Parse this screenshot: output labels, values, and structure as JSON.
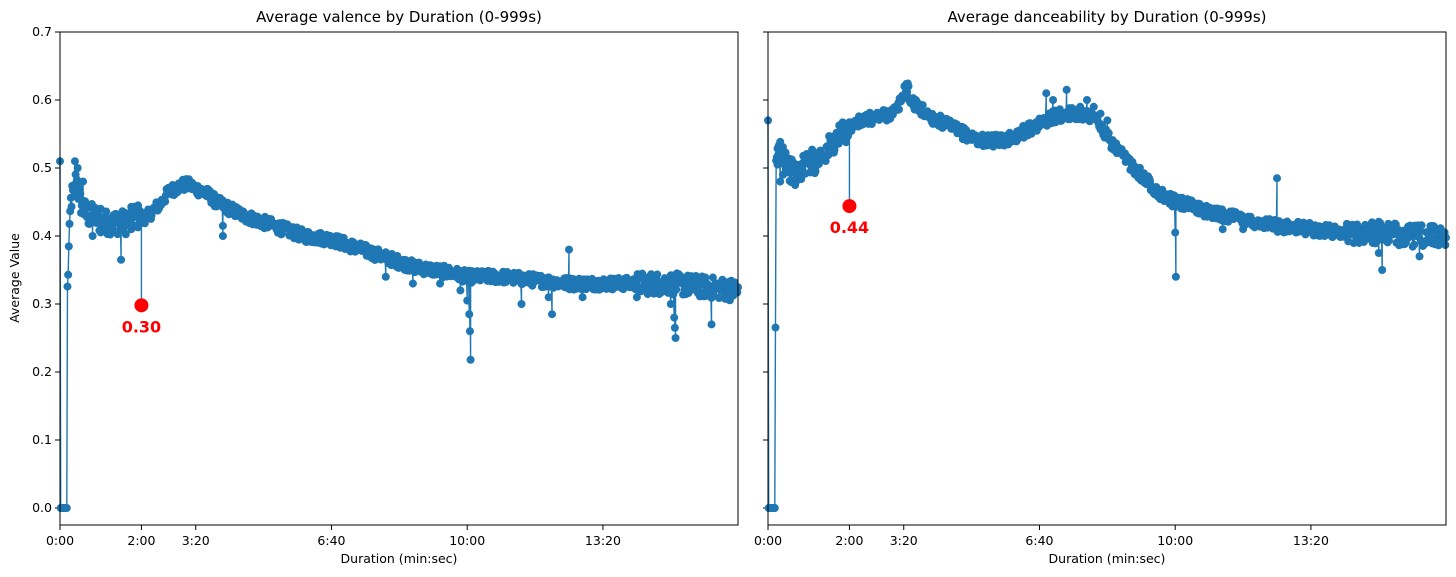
{
  "chart_data": [
    {
      "type": "line",
      "title": "Average valence by Duration (0-999s)",
      "xlabel": "Duration (min:sec)",
      "ylabel": "Average Value",
      "xlim": [
        0,
        999
      ],
      "ylim": [
        -0.025,
        0.7
      ],
      "xticks": [
        0,
        120,
        200,
        400,
        600,
        800
      ],
      "xtick_labels": [
        "0:00",
        "2:00",
        "3:20",
        "6:40",
        "10:00",
        "13:20"
      ],
      "yticks": [
        0.0,
        0.1,
        0.2,
        0.3,
        0.4,
        0.5,
        0.6,
        0.7
      ],
      "ytick_labels": [
        "0.0",
        "0.1",
        "0.2",
        "0.3",
        "0.4",
        "0.5",
        "0.6",
        "0.7"
      ],
      "series_color": "#1f77b4",
      "curve": [
        [
          0,
          0.51
        ],
        [
          1,
          0.0
        ],
        [
          2,
          0.0
        ],
        [
          3,
          0.0
        ],
        [
          4,
          0.0
        ],
        [
          5,
          0.0
        ],
        [
          6,
          0.0
        ],
        [
          7,
          0.0
        ],
        [
          8,
          0.0
        ],
        [
          9,
          0.0
        ],
        [
          10,
          0.0
        ],
        [
          11,
          0.32
        ],
        [
          12,
          0.35
        ],
        [
          13,
          0.38
        ],
        [
          14,
          0.4
        ],
        [
          15,
          0.43
        ],
        [
          16,
          0.45
        ],
        [
          18,
          0.46
        ],
        [
          20,
          0.46
        ],
        [
          22,
          0.47
        ],
        [
          24,
          0.49
        ],
        [
          26,
          0.47
        ],
        [
          28,
          0.46
        ],
        [
          30,
          0.45
        ],
        [
          35,
          0.44
        ],
        [
          40,
          0.43
        ],
        [
          50,
          0.43
        ],
        [
          60,
          0.42
        ],
        [
          70,
          0.42
        ],
        [
          80,
          0.42
        ],
        [
          90,
          0.42
        ],
        [
          100,
          0.42
        ],
        [
          110,
          0.43
        ],
        [
          120,
          0.425
        ],
        [
          130,
          0.43
        ],
        [
          140,
          0.44
        ],
        [
          150,
          0.45
        ],
        [
          160,
          0.465
        ],
        [
          170,
          0.47
        ],
        [
          180,
          0.475
        ],
        [
          190,
          0.475
        ],
        [
          200,
          0.47
        ],
        [
          210,
          0.465
        ],
        [
          220,
          0.46
        ],
        [
          230,
          0.45
        ],
        [
          240,
          0.445
        ],
        [
          250,
          0.44
        ],
        [
          270,
          0.43
        ],
        [
          300,
          0.42
        ],
        [
          330,
          0.41
        ],
        [
          360,
          0.4
        ],
        [
          400,
          0.395
        ],
        [
          430,
          0.385
        ],
        [
          460,
          0.375
        ],
        [
          490,
          0.365
        ],
        [
          520,
          0.355
        ],
        [
          550,
          0.35
        ],
        [
          580,
          0.345
        ],
        [
          600,
          0.34
        ],
        [
          650,
          0.34
        ],
        [
          700,
          0.335
        ],
        [
          750,
          0.33
        ],
        [
          800,
          0.33
        ],
        [
          850,
          0.33
        ],
        [
          900,
          0.33
        ],
        [
          950,
          0.325
        ],
        [
          999,
          0.32
        ]
      ],
      "spikes": [
        [
          22,
          0.51
        ],
        [
          26,
          0.5
        ],
        [
          34,
          0.48
        ],
        [
          48,
          0.4
        ],
        [
          60,
          0.44
        ],
        [
          68,
          0.41
        ],
        [
          80,
          0.43
        ],
        [
          90,
          0.365
        ],
        [
          105,
          0.41
        ],
        [
          115,
          0.445
        ],
        [
          240,
          0.4
        ],
        [
          240,
          0.415
        ],
        [
          410,
          0.39
        ],
        [
          480,
          0.34
        ],
        [
          520,
          0.33
        ],
        [
          560,
          0.33
        ],
        [
          590,
          0.32
        ],
        [
          600,
          0.305
        ],
        [
          603,
          0.285
        ],
        [
          604,
          0.26
        ],
        [
          605,
          0.218
        ],
        [
          680,
          0.3
        ],
        [
          720,
          0.31
        ],
        [
          725,
          0.285
        ],
        [
          750,
          0.38
        ],
        [
          770,
          0.31
        ],
        [
          850,
          0.31
        ],
        [
          900,
          0.3
        ],
        [
          905,
          0.28
        ],
        [
          906,
          0.265
        ],
        [
          907,
          0.25
        ],
        [
          960,
          0.27
        ]
      ],
      "highlight": {
        "x": 120,
        "y": 0.298,
        "label": "0.30",
        "color": "#ff0000"
      }
    },
    {
      "type": "line",
      "title": "Average danceability by Duration (0-999s)",
      "xlabel": "Duration (min:sec)",
      "xlim": [
        0,
        999
      ],
      "ylim": [
        -0.025,
        0.7
      ],
      "xticks": [
        0,
        120,
        200,
        400,
        600,
        800
      ],
      "xtick_labels": [
        "0:00",
        "2:00",
        "3:20",
        "6:40",
        "10:00",
        "13:20"
      ],
      "series_color": "#1f77b4",
      "curve": [
        [
          0,
          0.57
        ],
        [
          1,
          0.0
        ],
        [
          2,
          0.0
        ],
        [
          3,
          0.0
        ],
        [
          4,
          0.0
        ],
        [
          5,
          0.0
        ],
        [
          6,
          0.0
        ],
        [
          7,
          0.0
        ],
        [
          8,
          0.0
        ],
        [
          9,
          0.0
        ],
        [
          10,
          0.0
        ],
        [
          12,
          0.5
        ],
        [
          14,
          0.52
        ],
        [
          16,
          0.53
        ],
        [
          20,
          0.53
        ],
        [
          25,
          0.52
        ],
        [
          30,
          0.5
        ],
        [
          40,
          0.49
        ],
        [
          50,
          0.5
        ],
        [
          60,
          0.51
        ],
        [
          70,
          0.51
        ],
        [
          80,
          0.52
        ],
        [
          90,
          0.53
        ],
        [
          100,
          0.54
        ],
        [
          110,
          0.55
        ],
        [
          120,
          0.56
        ],
        [
          140,
          0.57
        ],
        [
          160,
          0.575
        ],
        [
          180,
          0.58
        ],
        [
          190,
          0.585
        ],
        [
          200,
          0.61
        ],
        [
          205,
          0.62
        ],
        [
          210,
          0.6
        ],
        [
          220,
          0.59
        ],
        [
          240,
          0.575
        ],
        [
          260,
          0.565
        ],
        [
          280,
          0.555
        ],
        [
          300,
          0.545
        ],
        [
          320,
          0.54
        ],
        [
          340,
          0.54
        ],
        [
          360,
          0.545
        ],
        [
          380,
          0.555
        ],
        [
          400,
          0.565
        ],
        [
          420,
          0.575
        ],
        [
          440,
          0.58
        ],
        [
          460,
          0.58
        ],
        [
          480,
          0.575
        ],
        [
          490,
          0.56
        ],
        [
          500,
          0.545
        ],
        [
          520,
          0.52
        ],
        [
          540,
          0.5
        ],
        [
          560,
          0.48
        ],
        [
          580,
          0.46
        ],
        [
          600,
          0.45
        ],
        [
          620,
          0.445
        ],
        [
          650,
          0.435
        ],
        [
          700,
          0.425
        ],
        [
          750,
          0.415
        ],
        [
          800,
          0.41
        ],
        [
          850,
          0.405
        ],
        [
          900,
          0.405
        ],
        [
          950,
          0.4
        ],
        [
          999,
          0.4
        ]
      ],
      "spikes": [
        [
          14,
          0.505
        ],
        [
          18,
          0.48
        ],
        [
          22,
          0.49
        ],
        [
          40,
          0.475
        ],
        [
          410,
          0.61
        ],
        [
          420,
          0.6
        ],
        [
          440,
          0.615
        ],
        [
          460,
          0.59
        ],
        [
          470,
          0.6
        ],
        [
          480,
          0.59
        ],
        [
          490,
          0.58
        ],
        [
          500,
          0.57
        ],
        [
          600,
          0.405
        ],
        [
          601,
          0.34
        ],
        [
          670,
          0.41
        ],
        [
          700,
          0.41
        ],
        [
          750,
          0.485
        ],
        [
          820,
          0.4
        ],
        [
          900,
          0.375
        ],
        [
          905,
          0.35
        ],
        [
          960,
          0.37
        ]
      ],
      "highlight": {
        "x": 120,
        "y": 0.444,
        "label": "0.44",
        "color": "#ff0000"
      }
    }
  ]
}
